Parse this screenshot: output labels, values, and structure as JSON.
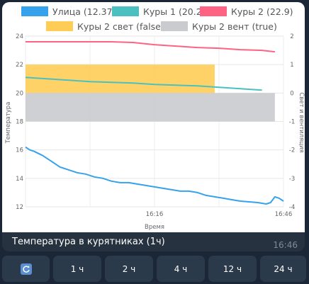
{
  "chart_data": {
    "type": "line",
    "legend": [
      {
        "label": "Улица (12.37)",
        "color": "#36a2eb"
      },
      {
        "label": "Куры 1 (20.2)",
        "color": "#4bc0c0"
      },
      {
        "label": "Куры 2 (22.9)",
        "color": "#ff6384"
      },
      {
        "label": "Куры 2 свет (false)",
        "color": "#ffcd56"
      },
      {
        "label": "Куры 2 вент (true)",
        "color": "#c9cbcf"
      }
    ],
    "xlabel": "Время",
    "ylabel": "Температура",
    "y2label": "Свет и вентиляция",
    "ylim": [
      12,
      24
    ],
    "y2lim": [
      -4,
      2
    ],
    "y_ticks": [
      "24",
      "22",
      "20",
      "18",
      "16",
      "14",
      "12"
    ],
    "y2_ticks": [
      "2",
      "1",
      "0",
      "-1",
      "-2",
      "-3",
      "-4"
    ],
    "x_ticks": [
      {
        "label": "16:16",
        "t": 30
      },
      {
        "label": "16:46",
        "t": 60
      }
    ],
    "xlim": [
      0,
      60
    ],
    "series": [
      {
        "name": "Улица (12.37)",
        "color": "#36a2eb",
        "axis": "y",
        "x": [
          0,
          1,
          2,
          4,
          6,
          8,
          10,
          12,
          14,
          16,
          18,
          20,
          22,
          24,
          26,
          28,
          30,
          32,
          34,
          36,
          38,
          40,
          42,
          44,
          46,
          48,
          50,
          52,
          54,
          56,
          57,
          58,
          59,
          60
        ],
        "values": [
          16.2,
          16.0,
          15.9,
          15.6,
          15.2,
          14.8,
          14.6,
          14.4,
          14.3,
          14.1,
          14.0,
          13.8,
          13.7,
          13.7,
          13.6,
          13.5,
          13.4,
          13.3,
          13.2,
          13.1,
          13.1,
          13.0,
          12.8,
          12.7,
          12.6,
          12.5,
          12.4,
          12.35,
          12.3,
          12.2,
          12.3,
          12.7,
          12.6,
          12.4
        ]
      },
      {
        "name": "Куры 1 (20.2)",
        "color": "#4bc0c0",
        "axis": "y",
        "x": [
          0,
          5,
          10,
          15,
          20,
          25,
          30,
          35,
          40,
          45,
          50,
          55
        ],
        "values": [
          21.1,
          21.0,
          20.9,
          20.8,
          20.75,
          20.7,
          20.6,
          20.55,
          20.5,
          20.4,
          20.3,
          20.2
        ]
      },
      {
        "name": "Куры 2 (22.9)",
        "color": "#ff6384",
        "axis": "y",
        "x": [
          0,
          5,
          10,
          15,
          20,
          25,
          30,
          35,
          40,
          45,
          50,
          55,
          58
        ],
        "values": [
          23.6,
          23.6,
          23.6,
          23.6,
          23.6,
          23.55,
          23.4,
          23.3,
          23.2,
          23.15,
          23.05,
          23.0,
          22.9
        ]
      }
    ],
    "bands": [
      {
        "name": "Куры 2 свет (false)",
        "color": "#ffcd56",
        "axis": "y2",
        "x_from": 0,
        "x_to": 44,
        "from": 0,
        "to": 1
      },
      {
        "name": "Куры 2 вент (true)",
        "color": "#c9cbcf",
        "axis": "y2",
        "x_from": 0,
        "x_to": 58,
        "from": -1,
        "to": 0
      }
    ]
  },
  "message": {
    "caption": "Температура в курятниках (1ч)",
    "time": "16:46"
  },
  "keyboard": {
    "refresh_icon": "refresh-icon",
    "buttons": [
      "1 ч",
      "2 ч",
      "4 ч",
      "12 ч",
      "24 ч"
    ]
  }
}
